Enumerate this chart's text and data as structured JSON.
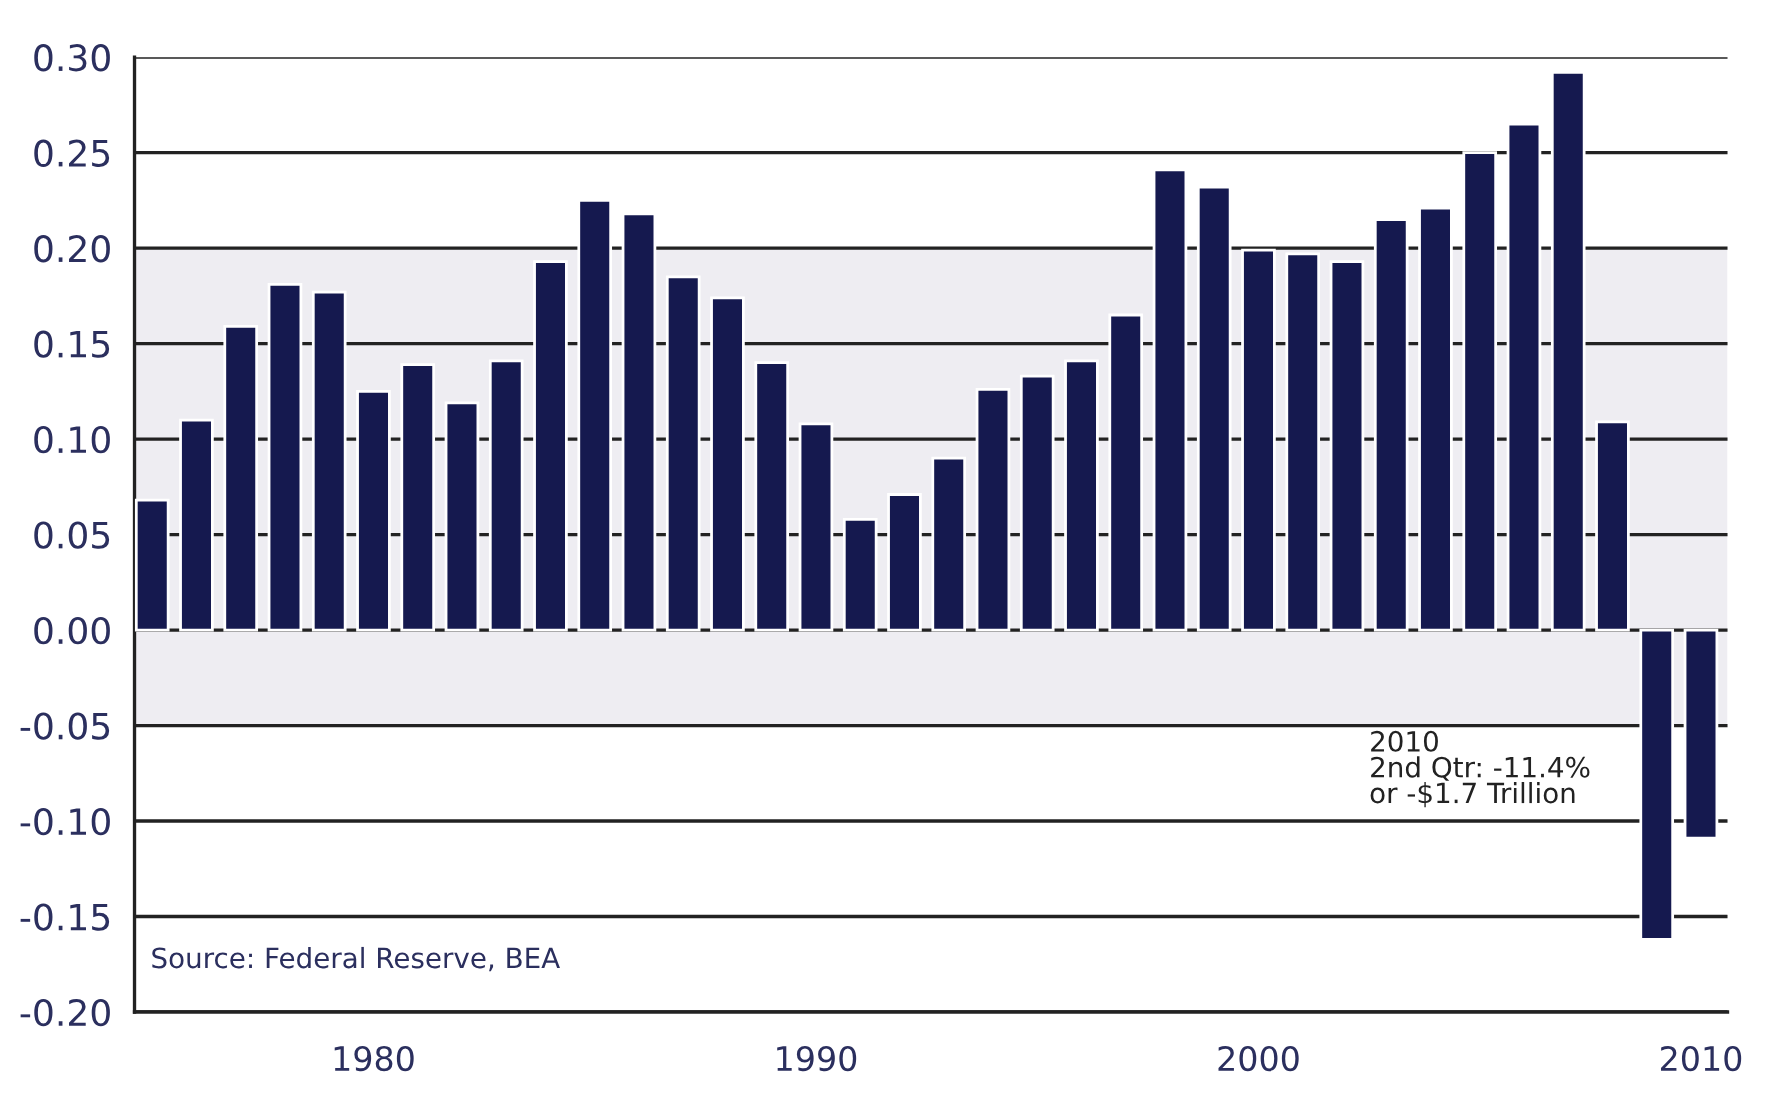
{
  "chart_data": {
    "type": "bar",
    "x": [
      1975,
      1976,
      1977,
      1978,
      1979,
      1980,
      1981,
      1982,
      1983,
      1984,
      1985,
      1986,
      1987,
      1988,
      1989,
      1990,
      1991,
      1992,
      1993,
      1994,
      1995,
      1996,
      1997,
      1998,
      1999,
      2000,
      2001,
      2002,
      2003,
      2004,
      2005,
      2006,
      2007,
      2008,
      2009,
      2010
    ],
    "values": [
      0.068,
      0.11,
      0.159,
      0.181,
      0.177,
      0.125,
      0.139,
      0.119,
      0.141,
      0.193,
      0.225,
      0.218,
      0.185,
      0.174,
      0.14,
      0.108,
      0.058,
      0.071,
      0.09,
      0.126,
      0.133,
      0.141,
      0.165,
      0.241,
      0.232,
      0.199,
      0.197,
      0.193,
      0.215,
      0.221,
      0.25,
      0.265,
      0.292,
      0.109,
      -0.162,
      -0.109
    ],
    "color": "#15194f",
    "xlim": [
      1974.6,
      2010.6
    ],
    "xticks": [
      1980,
      1990,
      2000,
      2010
    ],
    "ylim": [
      -0.2,
      0.3
    ],
    "yticks": [
      {
        "value": -0.2,
        "label": "-0.20"
      },
      {
        "value": -0.15,
        "label": "-0.15"
      },
      {
        "value": -0.1,
        "label": "-0.10"
      },
      {
        "value": -0.05,
        "label": "-0.05"
      },
      {
        "value": 0,
        "label": "0.00"
      },
      {
        "value": 0.05,
        "label": "0.05"
      },
      {
        "value": 0.1,
        "label": "0.10"
      },
      {
        "value": 0.15,
        "label": "0.15"
      },
      {
        "value": 0.2,
        "label": "0.20"
      },
      {
        "value": 0.25,
        "label": "0.25"
      },
      {
        "value": 0.3,
        "label": "0.30"
      }
    ],
    "grid": "y",
    "bands": [
      {
        "axis": "y",
        "from": -0.05,
        "to": 0.2,
        "color": "#eeedf2"
      }
    ],
    "annotations": [
      "2010\n2nd Qtr: -11.4%\nor -$1.7 Trillion",
      "Source: Federal Reserve, BEA"
    ]
  }
}
